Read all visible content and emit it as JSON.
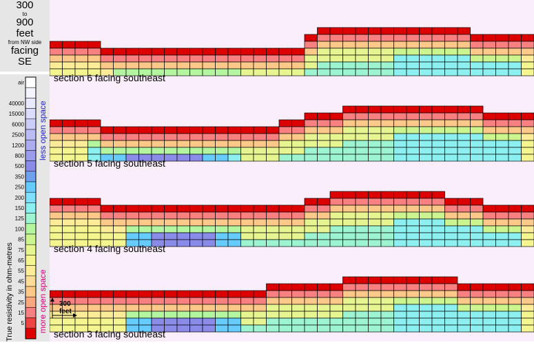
{
  "title": {
    "line1": "300",
    "line2": "to",
    "line3": "900",
    "line4": "feet",
    "line5": "from NW side",
    "line6": "facing",
    "line7": "SE"
  },
  "legend": {
    "axis_label": "True resistivity in ohm-metres",
    "less_label": "less open space",
    "more_label": "more open space",
    "less_color": "#2222cc",
    "more_color": "#dd0077",
    "bins": [
      {
        "label": "air",
        "color": "#ffffff"
      },
      {
        "label": "",
        "color": "#f4f4ff"
      },
      {
        "label": "40000",
        "color": "#e8e8fe"
      },
      {
        "label": "15000",
        "color": "#dcdcfc"
      },
      {
        "label": "6000",
        "color": "#ccccf8"
      },
      {
        "label": "2500",
        "color": "#bcbcf4"
      },
      {
        "label": "1200",
        "color": "#acacf0"
      },
      {
        "label": "800",
        "color": "#9c9cee"
      },
      {
        "label": "500",
        "color": "#8a8ae8"
      },
      {
        "label": "350",
        "color": "#6fa0ee"
      },
      {
        "label": "250",
        "color": "#66ccff"
      },
      {
        "label": "200",
        "color": "#80e0ff"
      },
      {
        "label": "150",
        "color": "#8cf0f0"
      },
      {
        "label": "125",
        "color": "#9cf5d0"
      },
      {
        "label": "100",
        "color": "#b4f5a0"
      },
      {
        "label": "85",
        "color": "#ccf590"
      },
      {
        "label": "75",
        "color": "#e6f590"
      },
      {
        "label": "65",
        "color": "#f5f590"
      },
      {
        "label": "55",
        "color": "#fcec98"
      },
      {
        "label": "45",
        "color": "#fddc98"
      },
      {
        "label": "35",
        "color": "#fdc888"
      },
      {
        "label": "25",
        "color": "#fba880"
      },
      {
        "label": "15",
        "color": "#f88080"
      },
      {
        "label": "5",
        "color": "#ee4444"
      },
      {
        "label": "",
        "color": "#dd0000"
      }
    ]
  },
  "scalebar": {
    "line1": "300",
    "line2": "feet"
  },
  "chart_data": {
    "type": "heatmap",
    "columns_per_section": 38,
    "rows_per_section": 8,
    "sections": [
      {
        "label": "section 6 facing southeast",
        "surface_rows": [
          3,
          3,
          3,
          3,
          4,
          4,
          4,
          4,
          4,
          4,
          4,
          4,
          4,
          4,
          4,
          4,
          4,
          4,
          4,
          4,
          2,
          1,
          1,
          1,
          1,
          1,
          1,
          1,
          1,
          1,
          1,
          1,
          1,
          2,
          2,
          2,
          2,
          2
        ],
        "left_zone": [
          5,
          14
        ],
        "center_zone": [
          15,
          26
        ],
        "right_zone": [
          27,
          36
        ]
      },
      {
        "label": "section 5 facing southeast",
        "surface_rows": [
          2,
          2,
          2,
          2,
          3,
          3,
          3,
          3,
          3,
          3,
          3,
          3,
          3,
          3,
          3,
          3,
          3,
          3,
          2,
          2,
          1,
          1,
          1,
          0,
          0,
          0,
          0,
          0,
          0,
          0,
          0,
          0,
          0,
          0,
          1,
          1,
          1,
          1
        ],
        "left_zone": [
          3,
          14
        ],
        "center_zone": [
          15,
          26
        ],
        "right_zone": [
          27,
          36
        ]
      },
      {
        "label": "section 4 facing southeast",
        "surface_rows": [
          1,
          1,
          1,
          1,
          2,
          2,
          2,
          2,
          2,
          2,
          2,
          2,
          2,
          2,
          2,
          2,
          2,
          2,
          2,
          2,
          1,
          1,
          0,
          0,
          0,
          0,
          0,
          0,
          0,
          0,
          0,
          1,
          1,
          1,
          2,
          2,
          2,
          2
        ],
        "left_zone": [
          6,
          14
        ],
        "center_zone": [
          15,
          26
        ],
        "right_zone": [
          27,
          36
        ]
      },
      {
        "label": "section 3 facing southeast",
        "surface_rows": [
          2,
          2,
          2,
          2,
          2,
          2,
          2,
          2,
          2,
          2,
          2,
          2,
          2,
          2,
          2,
          2,
          2,
          1,
          1,
          1,
          1,
          1,
          1,
          0,
          0,
          0,
          0,
          0,
          0,
          0,
          0,
          0,
          1,
          1,
          1,
          1,
          1,
          1
        ],
        "left_zone": [
          6,
          14
        ],
        "center_zone": [
          15,
          26
        ],
        "right_zone": [
          27,
          36
        ]
      }
    ]
  }
}
